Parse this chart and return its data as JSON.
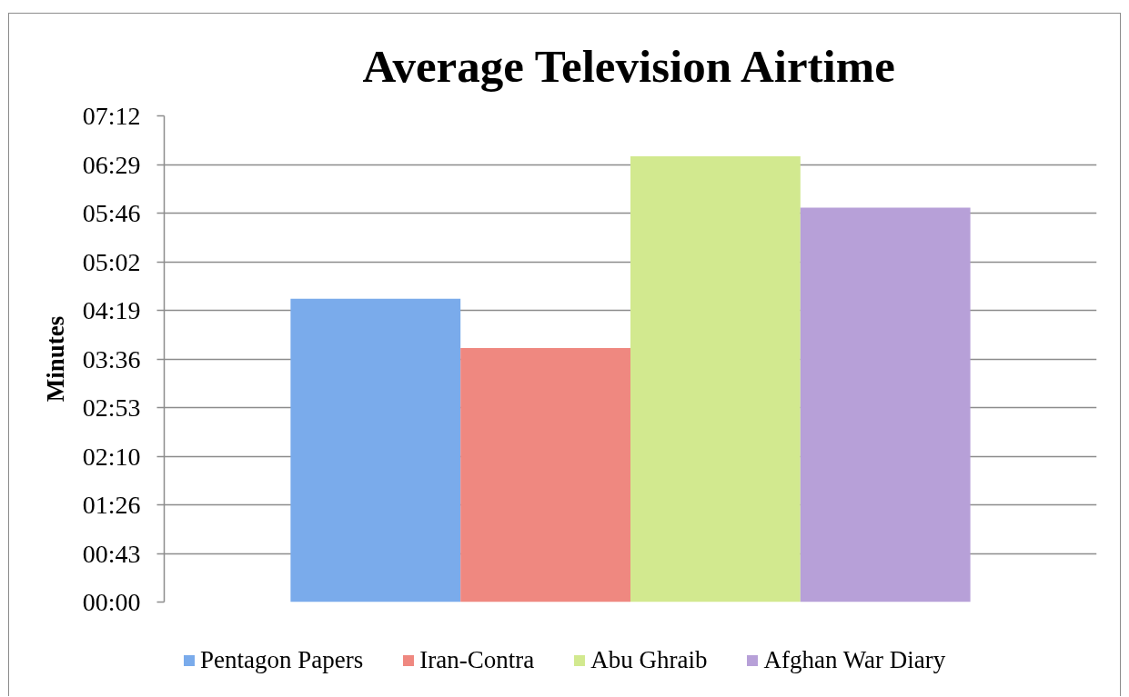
{
  "chart_data": {
    "type": "bar",
    "title": "Average Television Airtime",
    "ylabel": "Minutes",
    "categories": [
      null
    ],
    "series": [
      {
        "name": "Pentagon Papers",
        "color": "#7aabeb",
        "values": [
          4.49
        ]
      },
      {
        "name": "Iran-Contra",
        "color": "#ef8880",
        "values": [
          3.76
        ]
      },
      {
        "name": "Abu Ghraib",
        "color": "#d2e98f",
        "values": [
          6.6
        ]
      },
      {
        "name": "Afghan War Diary",
        "color": "#b7a0d8",
        "values": [
          5.84
        ]
      }
    ],
    "ylim": [
      0,
      7.2
    ],
    "yticks": [
      {
        "value": 0,
        "label": "00:00"
      },
      {
        "value": 0.72,
        "label": "00:43"
      },
      {
        "value": 1.44,
        "label": "01:26"
      },
      {
        "value": 2.16,
        "label": "02:10"
      },
      {
        "value": 2.88,
        "label": "02:53"
      },
      {
        "value": 3.6,
        "label": "03:36"
      },
      {
        "value": 4.32,
        "label": "04:19"
      },
      {
        "value": 5.04,
        "label": "05:02"
      },
      {
        "value": 5.76,
        "label": "05:46"
      },
      {
        "value": 6.48,
        "label": "06:29"
      },
      {
        "value": 7.2,
        "label": "07:12"
      }
    ],
    "grid": "y",
    "legend": "bottom"
  }
}
